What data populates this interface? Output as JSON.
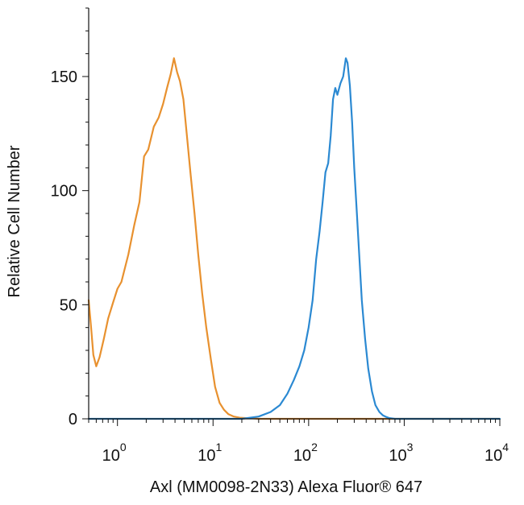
{
  "chart_data": {
    "type": "line",
    "title": "",
    "xlabel": "Axl (MM0098-2N33) Alexa Fluor® 647",
    "ylabel": "Relative Cell Number",
    "xscale": "log",
    "xlim": [
      0.5,
      10000
    ],
    "ylim": [
      0,
      180
    ],
    "grid": false,
    "legend": "none",
    "y_ticks": [
      {
        "value": 0,
        "label": "0"
      },
      {
        "value": 50,
        "label": "50"
      },
      {
        "value": 100,
        "label": "100"
      },
      {
        "value": 150,
        "label": "150"
      }
    ],
    "x_ticks": [
      {
        "value": 1,
        "base": "10",
        "exp": "0"
      },
      {
        "value": 10,
        "base": "10",
        "exp": "1"
      },
      {
        "value": 100,
        "base": "10",
        "exp": "2"
      },
      {
        "value": 1000,
        "base": "10",
        "exp": "3"
      },
      {
        "value": 10000,
        "base": "10",
        "exp": "4"
      }
    ],
    "series": [
      {
        "color": "#E8912F",
        "x": [
          0.5,
          0.53,
          0.56,
          0.6,
          0.65,
          0.72,
          0.8,
          0.9,
          1.0,
          1.1,
          1.3,
          1.5,
          1.7,
          1.9,
          2.1,
          2.4,
          2.7,
          3.0,
          3.3,
          3.6,
          3.9,
          4.2,
          4.5,
          4.9,
          5.3,
          5.8,
          6.4,
          7.0,
          7.7,
          8.5,
          9.5,
          10.5,
          11.7,
          13.0,
          14.5,
          16.5,
          19.0,
          22.0,
          26.0,
          30.0,
          40.0,
          60.0,
          100.0,
          200.0,
          500.0,
          1000.0,
          10000.0
        ],
        "y": [
          52,
          40,
          28,
          23,
          27,
          35,
          44,
          51,
          57,
          60,
          72,
          85,
          95,
          115,
          118,
          128,
          132,
          138,
          145,
          151,
          158,
          152,
          148,
          140,
          125,
          108,
          90,
          72,
          55,
          40,
          26,
          14,
          7,
          4,
          2,
          1,
          0.5,
          0.3,
          0.2,
          0,
          0,
          0,
          0,
          0,
          0,
          0,
          0
        ]
      },
      {
        "color": "#2B89D2",
        "x": [
          0.5,
          1.0,
          10.0,
          20.0,
          30.0,
          40.0,
          50.0,
          60.0,
          70.0,
          80.0,
          90.0,
          100.0,
          110.0,
          120.0,
          130.0,
          140.0,
          150.0,
          160.0,
          170.0,
          180.0,
          190.0,
          200.0,
          215.0,
          230.0,
          245.0,
          255.0,
          270.0,
          285.0,
          300.0,
          320.0,
          340.0,
          360.0,
          390.0,
          420.0,
          460.0,
          500.0,
          550.0,
          600.0,
          650.0,
          700.0,
          800.0,
          1000.0,
          2000.0,
          10000.0
        ],
        "y": [
          0,
          0,
          0,
          0,
          1,
          3,
          6,
          11,
          17,
          23,
          30,
          40,
          52,
          70,
          82,
          95,
          108,
          112,
          124,
          140,
          145,
          142,
          147,
          150,
          158,
          156,
          146,
          130,
          110,
          90,
          70,
          52,
          35,
          22,
          12,
          6,
          3,
          1.5,
          0.8,
          0.3,
          0,
          0,
          0,
          0
        ]
      }
    ]
  }
}
